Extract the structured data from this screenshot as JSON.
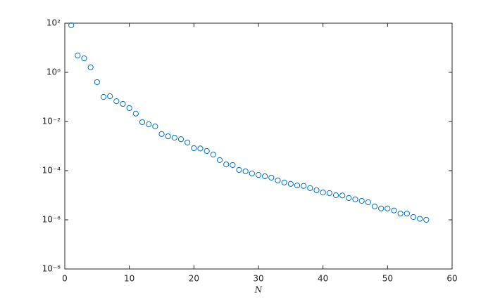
{
  "chart_data": {
    "type": "scatter",
    "xlabel": "N",
    "log_y": true,
    "series": [
      {
        "color": "#0072bd",
        "x": [
          1,
          2,
          3,
          4,
          5,
          6,
          7,
          8,
          9,
          10,
          11,
          12,
          13,
          14,
          15,
          16,
          17,
          18,
          19,
          20,
          21,
          22,
          23,
          24,
          25,
          26,
          27,
          28,
          29,
          30,
          31,
          32,
          33,
          34,
          35,
          36,
          37,
          38,
          39,
          40,
          41,
          42,
          43,
          44,
          45,
          46,
          47,
          48,
          49,
          50,
          51,
          52,
          53,
          54,
          55,
          56
        ],
        "values": [
          82,
          4.85,
          3.7,
          1.6,
          0.4,
          0.1,
          0.107,
          0.067,
          0.052,
          0.035,
          0.021,
          0.0094,
          0.0077,
          0.0063,
          0.0031,
          0.0025,
          0.0022,
          0.0019,
          0.0014,
          0.00082,
          0.0008,
          0.00063,
          0.00045,
          0.00027,
          0.00018,
          0.00017,
          0.000107,
          9.4e-05,
          7.7e-05,
          6.7e-05,
          5.9e-05,
          5.2e-05,
          4e-05,
          3.3e-05,
          2.9e-05,
          2.5e-05,
          2.4e-05,
          1.95e-05,
          1.6e-05,
          1.3e-05,
          1.22e-05,
          1e-05,
          9.8e-06,
          7.7e-06,
          6.8e-06,
          5.9e-06,
          5.2e-06,
          3.5e-06,
          2.9e-06,
          2.9e-06,
          2.4e-06,
          1.8e-06,
          1.8e-06,
          1.3e-06,
          1.1e-06,
          1e-06
        ]
      }
    ],
    "xlim": [
      0,
      60
    ],
    "xticks": [
      0,
      10,
      20,
      30,
      40,
      50,
      60
    ],
    "ylim": [
      1e-08,
      100
    ],
    "yticks": [
      {
        "value": 100,
        "label": "10²"
      },
      {
        "value": 1,
        "label": "10⁰"
      },
      {
        "value": 0.01,
        "label": "10⁻²"
      },
      {
        "value": 0.0001,
        "label": "10⁻⁴"
      },
      {
        "value": 1e-06,
        "label": "10⁻⁶"
      },
      {
        "value": 1e-08,
        "label": "10⁻⁸"
      }
    ]
  }
}
